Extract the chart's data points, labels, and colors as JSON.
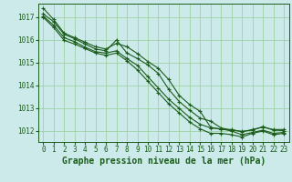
{
  "x": [
    0,
    1,
    2,
    3,
    4,
    5,
    6,
    7,
    8,
    9,
    10,
    11,
    12,
    13,
    14,
    15,
    16,
    17,
    18,
    19,
    20,
    21,
    22,
    23
  ],
  "series": [
    [
      1017.4,
      1016.9,
      1016.3,
      1016.1,
      1015.9,
      1015.7,
      1015.6,
      1015.85,
      1015.7,
      1015.4,
      1015.05,
      1014.75,
      1014.25,
      1013.55,
      1013.15,
      1012.85,
      1012.15,
      1012.05,
      1012.05,
      1011.95,
      1012.05,
      1012.15,
      1012.05,
      1012.05
    ],
    [
      1017.15,
      1016.8,
      1016.25,
      1016.05,
      1015.82,
      1015.6,
      1015.52,
      1016.0,
      1015.42,
      1015.18,
      1014.9,
      1014.52,
      1013.82,
      1013.28,
      1012.9,
      1012.55,
      1012.42,
      1012.12,
      1012.02,
      1011.97,
      1012.02,
      1012.18,
      1012.02,
      1012.0
    ],
    [
      1017.05,
      1016.65,
      1016.1,
      1015.92,
      1015.68,
      1015.48,
      1015.42,
      1015.52,
      1015.18,
      1014.88,
      1014.38,
      1013.88,
      1013.38,
      1012.98,
      1012.58,
      1012.28,
      1012.12,
      1012.08,
      1011.98,
      1011.82,
      1011.92,
      1012.02,
      1011.88,
      1011.92
    ],
    [
      1017.0,
      1016.55,
      1015.98,
      1015.82,
      1015.62,
      1015.42,
      1015.32,
      1015.42,
      1015.08,
      1014.68,
      1014.18,
      1013.68,
      1013.18,
      1012.78,
      1012.38,
      1012.08,
      1011.88,
      1011.88,
      1011.82,
      1011.72,
      1011.88,
      1011.98,
      1011.82,
      1011.88
    ]
  ],
  "line_color": "#1a5c1a",
  "marker": "+",
  "bg_color": "#cceaea",
  "grid_color": "#99cc99",
  "xlabel": "Graphe pression niveau de la mer (hPa)",
  "ylim": [
    1011.5,
    1017.6
  ],
  "yticks": [
    1012,
    1013,
    1014,
    1015,
    1016,
    1017
  ],
  "xticks": [
    0,
    1,
    2,
    3,
    4,
    5,
    6,
    7,
    8,
    9,
    10,
    11,
    12,
    13,
    14,
    15,
    16,
    17,
    18,
    19,
    20,
    21,
    22,
    23
  ],
  "figsize": [
    3.2,
    2.0
  ],
  "dpi": 100
}
